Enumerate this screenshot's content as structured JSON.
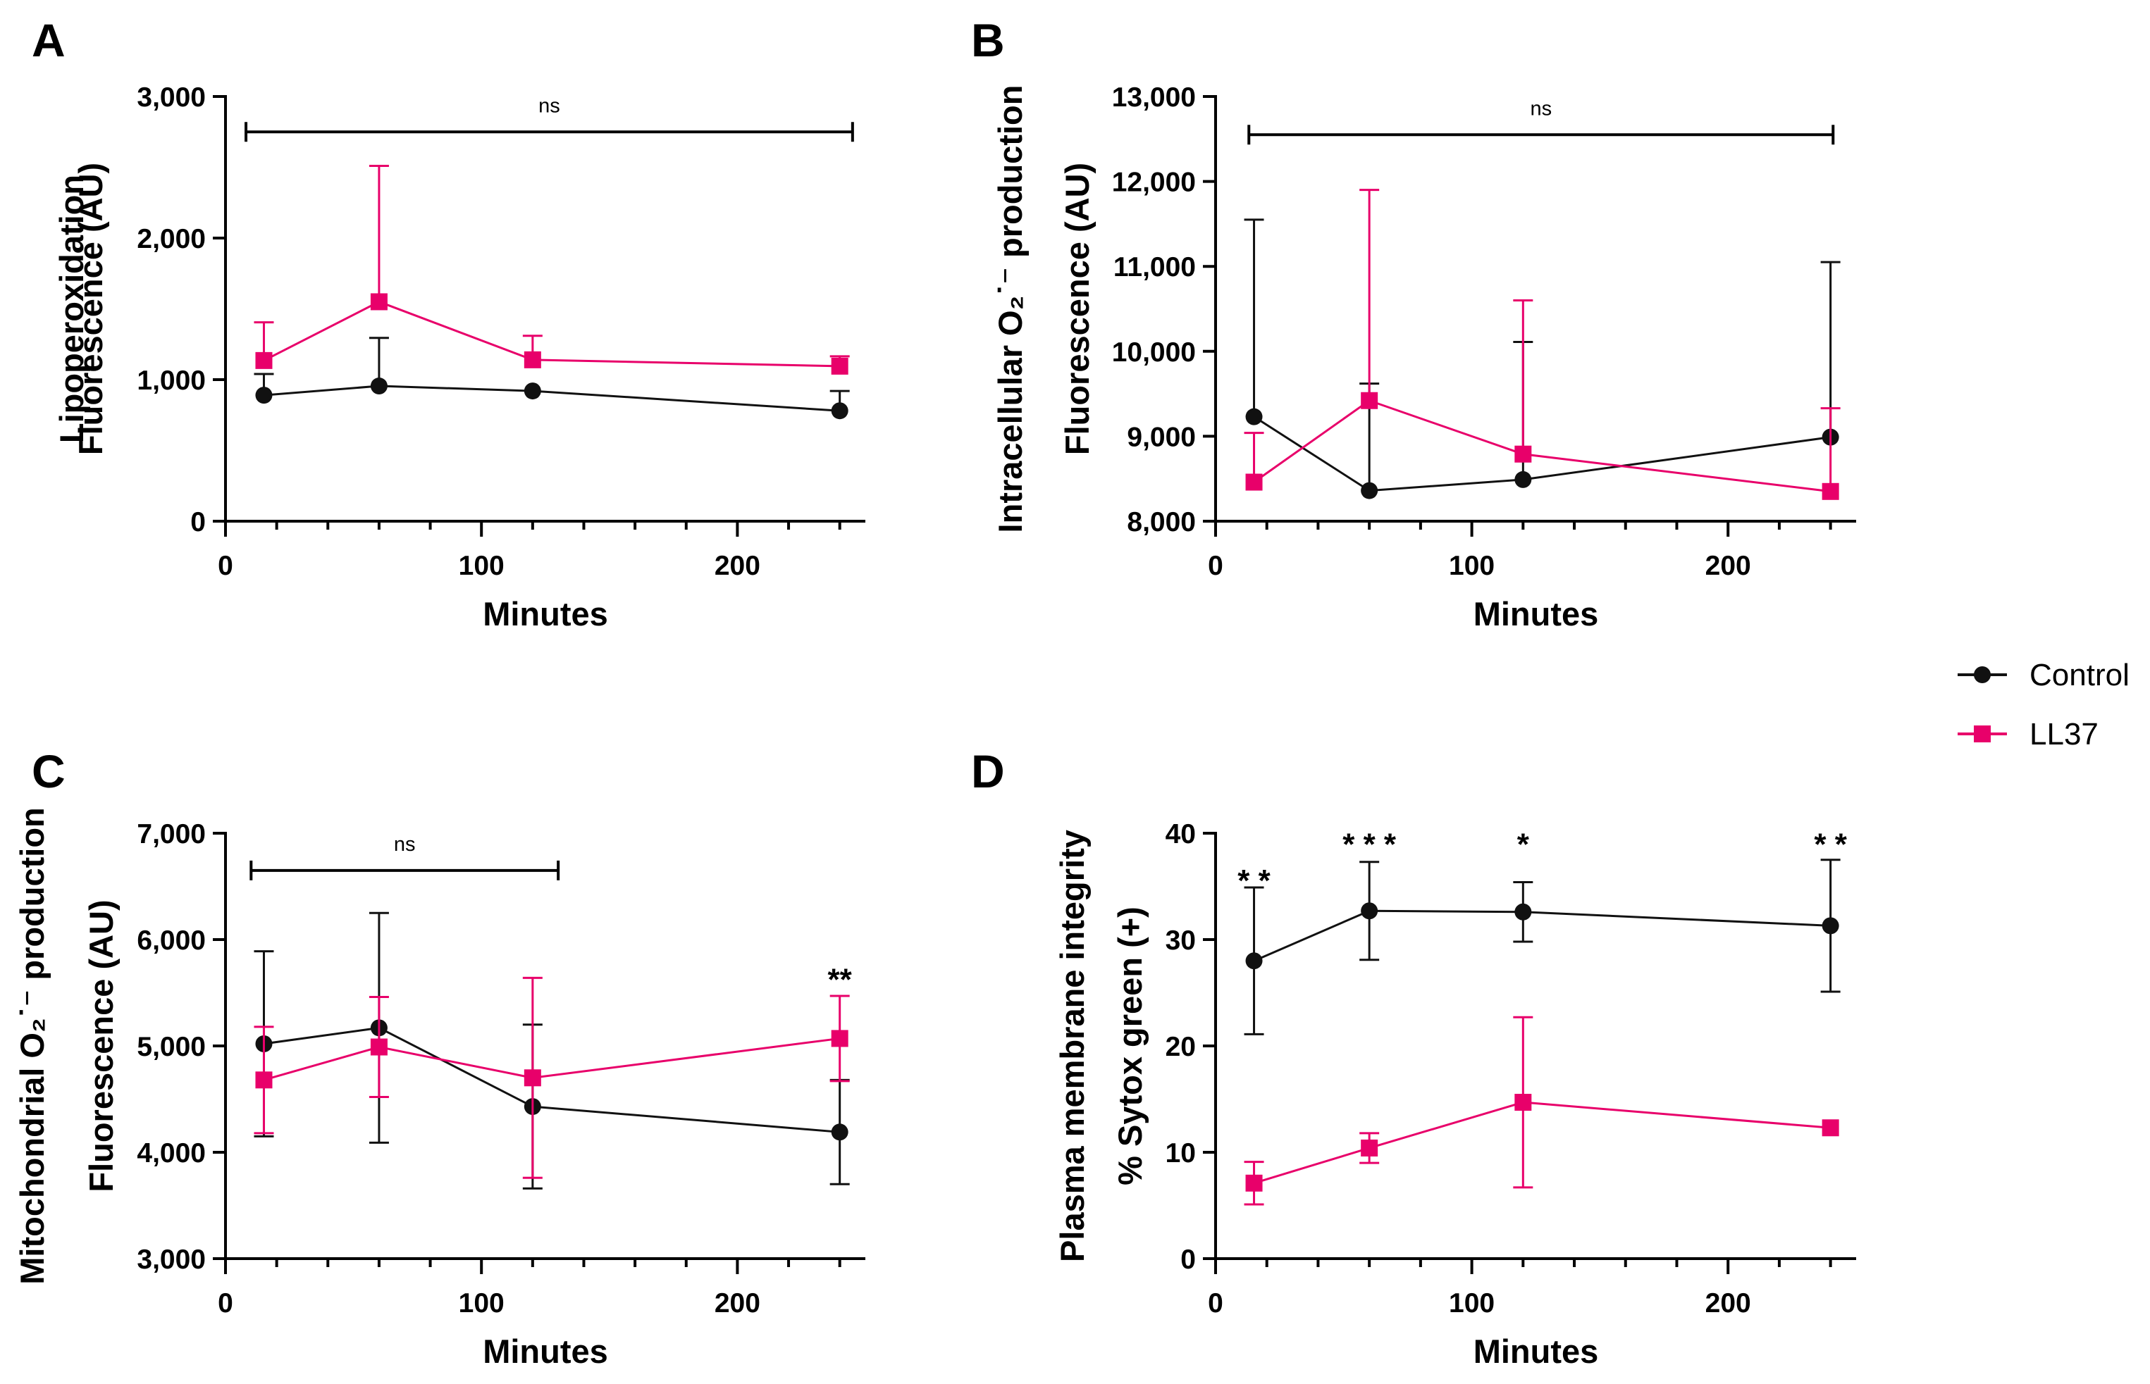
{
  "legend": [
    {
      "name": "Control",
      "color": "#111111",
      "marker": "circle"
    },
    {
      "name": "LL37",
      "color": "#e8006a",
      "marker": "square"
    }
  ],
  "chart_data": [
    {
      "type": "line",
      "panel_label": "A",
      "ylabel": [
        "Lipoperoxidation",
        "Fluorescence (AU)"
      ],
      "xlabel": "Minutes",
      "xlim": [
        0,
        250
      ],
      "ylim": [
        0,
        3000
      ],
      "xticks": [
        0,
        100,
        200
      ],
      "yticks": [
        0,
        1000,
        2000,
        3000
      ],
      "ytick_labels": [
        "0",
        "1,000",
        "2,000",
        "3,000"
      ],
      "x": [
        15,
        60,
        120,
        240
      ],
      "series": [
        {
          "name": "Control",
          "values": [
            890,
            955,
            920,
            780
          ],
          "err_up": [
            150,
            340,
            0,
            140
          ],
          "err_down": [
            0,
            0,
            0,
            0
          ]
        },
        {
          "name": "LL37",
          "values": [
            1135,
            1550,
            1140,
            1095
          ],
          "err_up": [
            270,
            960,
            170,
            70
          ],
          "err_down": [
            0,
            0,
            0,
            0
          ]
        }
      ],
      "brackets": [
        {
          "x1": 8,
          "x2": 245,
          "y": 2750,
          "label": "ns"
        }
      ],
      "annotations": []
    },
    {
      "type": "line",
      "panel_label": "B",
      "ylabel": [
        "Intracellular O₂˙⁻ production",
        "Fluorescence (AU)"
      ],
      "xlabel": "Minutes",
      "xlim": [
        0,
        250
      ],
      "ylim": [
        8000,
        13000
      ],
      "xticks": [
        0,
        100,
        200
      ],
      "yticks": [
        8000,
        9000,
        10000,
        11000,
        12000,
        13000
      ],
      "ytick_labels": [
        "8,000",
        "9,000",
        "10,000",
        "11,000",
        "12,000",
        "13,000"
      ],
      "x": [
        15,
        60,
        120,
        240
      ],
      "series": [
        {
          "name": "Control",
          "values": [
            9230,
            8360,
            8490,
            8990
          ],
          "err_up": [
            2320,
            1260,
            1620,
            2060
          ],
          "err_down": [
            0,
            0,
            0,
            0
          ]
        },
        {
          "name": "LL37",
          "values": [
            8460,
            9420,
            8790,
            8350
          ],
          "err_up": [
            580,
            2480,
            1810,
            980
          ],
          "err_down": [
            0,
            0,
            0,
            0
          ]
        }
      ],
      "brackets": [
        {
          "x1": 13,
          "x2": 241,
          "y": 12550,
          "label": "ns"
        }
      ],
      "annotations": []
    },
    {
      "type": "line",
      "panel_label": "C",
      "ylabel": [
        "Mitochondrial O₂˙⁻ production",
        "Fluorescence (AU)"
      ],
      "xlabel": "Minutes",
      "xlim": [
        0,
        250
      ],
      "ylim": [
        3000,
        7000
      ],
      "xticks": [
        0,
        100,
        200
      ],
      "yticks": [
        3000,
        4000,
        5000,
        6000,
        7000
      ],
      "ytick_labels": [
        "3,000",
        "4,000",
        "5,000",
        "6,000",
        "7,000"
      ],
      "x": [
        15,
        60,
        120,
        240
      ],
      "series": [
        {
          "name": "Control",
          "values": [
            5020,
            5170,
            4430,
            4190
          ],
          "err_up": [
            870,
            1080,
            770,
            490
          ],
          "err_down": [
            870,
            1080,
            770,
            490
          ]
        },
        {
          "name": "LL37",
          "values": [
            4680,
            4990,
            4700,
            5070
          ],
          "err_up": [
            500,
            470,
            940,
            400
          ],
          "err_down": [
            500,
            470,
            940,
            400
          ]
        }
      ],
      "brackets": [
        {
          "x1": 10,
          "x2": 130,
          "y": 6650,
          "label": "ns"
        }
      ],
      "annotations": [
        {
          "x": 240,
          "y": 5700,
          "text": "**"
        }
      ]
    },
    {
      "type": "line",
      "panel_label": "D",
      "ylabel": [
        "Plasma membrane integrity",
        "% Sytox green (+)"
      ],
      "xlabel": "Minutes",
      "xlim": [
        0,
        250
      ],
      "ylim": [
        0,
        40
      ],
      "xticks": [
        0,
        100,
        200
      ],
      "yticks": [
        0,
        10,
        20,
        30,
        40
      ],
      "ytick_labels": [
        "0",
        "10",
        "20",
        "30",
        "40"
      ],
      "x": [
        15,
        60,
        120,
        240
      ],
      "series": [
        {
          "name": "Control",
          "values": [
            28,
            32.7,
            32.6,
            31.3
          ],
          "err_up": [
            6.9,
            4.6,
            2.8,
            6.2
          ],
          "err_down": [
            6.9,
            4.6,
            2.8,
            6.2
          ]
        },
        {
          "name": "LL37",
          "values": [
            7.1,
            10.4,
            14.7,
            12.3
          ],
          "err_up": [
            2,
            1.4,
            8,
            0
          ],
          "err_down": [
            2,
            1.4,
            8,
            0
          ]
        }
      ],
      "brackets": [],
      "annotations": [
        {
          "x": 15,
          "y": 36.3,
          "text": "* *"
        },
        {
          "x": 60,
          "y": 39.7,
          "text": "* * *"
        },
        {
          "x": 120,
          "y": 39.7,
          "text": "*"
        },
        {
          "x": 240,
          "y": 39.7,
          "text": "* *"
        }
      ]
    }
  ]
}
